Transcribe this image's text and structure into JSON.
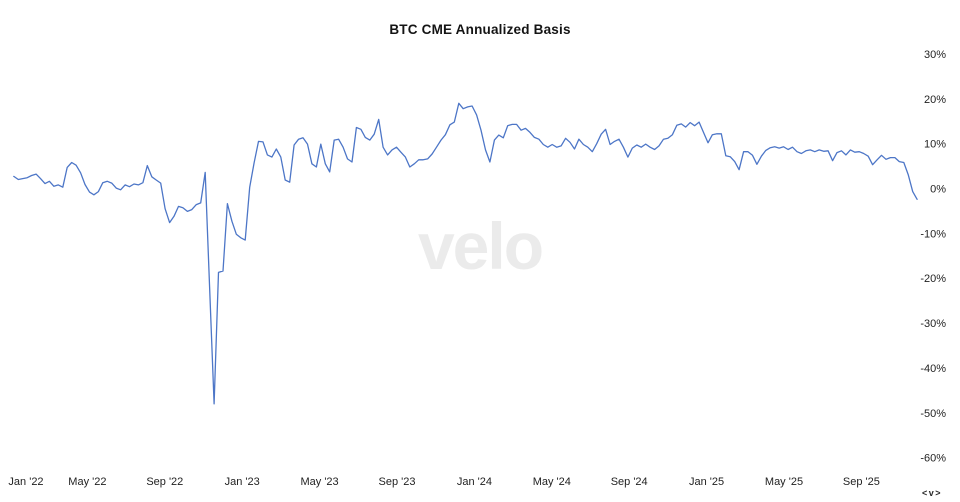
{
  "title": "BTC CME Annualized Basis",
  "watermark": "velo",
  "corner_mark": "<v>",
  "colors": {
    "line": "#4d76c7",
    "title_text": "#141414",
    "tick_text": "#1f1f1f",
    "watermark_text": "#ebebeb",
    "background": "#ffffff"
  },
  "chart_data": {
    "type": "line",
    "title": "BTC CME Annualized Basis",
    "series_name": "BTC CME Annualized Basis",
    "unit": "%",
    "grid": false,
    "legend": false,
    "x_start_date": "2022-01-07",
    "x_interval_days": 7,
    "ylim": [
      -62,
      32
    ],
    "y_ticks": [
      30,
      20,
      10,
      0,
      -10,
      -20,
      -30,
      -40,
      -50,
      -60
    ],
    "x_tick_labels": [
      {
        "label": "Jan '22",
        "month": 0
      },
      {
        "label": "May '22",
        "month": 4
      },
      {
        "label": "Sep '22",
        "month": 8
      },
      {
        "label": "Jan '23",
        "month": 12
      },
      {
        "label": "May '23",
        "month": 16
      },
      {
        "label": "Sep '23",
        "month": 20
      },
      {
        "label": "Jan '24",
        "month": 24
      },
      {
        "label": "May '24",
        "month": 28
      },
      {
        "label": "Sep '24",
        "month": 32
      },
      {
        "label": "Jan '25",
        "month": 36
      },
      {
        "label": "May '25",
        "month": 40
      },
      {
        "label": "Sep '25",
        "month": 44
      }
    ],
    "values": [
      2.7,
      2.0,
      2.2,
      2.4,
      2.9,
      3.2,
      2.2,
      1.1,
      1.6,
      0.5,
      0.8,
      0.3,
      4.7,
      5.8,
      5.2,
      3.5,
      0.9,
      -0.8,
      -1.4,
      -0.7,
      1.3,
      1.6,
      1.2,
      0.1,
      -0.3,
      0.8,
      0.4,
      1.0,
      0.8,
      1.3,
      5.1,
      2.6,
      1.9,
      1.2,
      -4.5,
      -7.6,
      -6.2,
      -4.0,
      -4.3,
      -5.1,
      -4.7,
      -3.6,
      -3.2,
      3.6,
      -22.0,
      -48.0,
      -18.7,
      -18.4,
      -3.4,
      -7.3,
      -10.2,
      -11.0,
      -11.5,
      0.3,
      5.7,
      10.5,
      10.4,
      7.5,
      7.0,
      8.8,
      7.0,
      1.9,
      1.4,
      9.7,
      11.0,
      11.3,
      9.9,
      5.5,
      4.8,
      9.9,
      5.5,
      3.7,
      10.8,
      11.0,
      9.2,
      6.6,
      5.9,
      13.6,
      13.2,
      11.4,
      10.8,
      12.1,
      15.4,
      9.2,
      7.5,
      8.6,
      9.2,
      8.1,
      7.0,
      4.8,
      5.5,
      6.4,
      6.4,
      6.6,
      7.7,
      9.2,
      10.8,
      12.0,
      14.2,
      14.8,
      19.0,
      17.8,
      18.2,
      18.4,
      16.4,
      13.0,
      8.6,
      5.9,
      10.8,
      11.9,
      11.3,
      14.0,
      14.3,
      14.3,
      13.0,
      13.4,
      12.5,
      11.4,
      11.0,
      9.8,
      9.2,
      9.8,
      9.2,
      9.5,
      11.2,
      10.3,
      8.8,
      11.0,
      9.8,
      9.2,
      8.2,
      10.0,
      12.1,
      13.2,
      9.8,
      10.5,
      11.0,
      9.2,
      7.0,
      9.0,
      9.7,
      9.2,
      9.9,
      9.2,
      8.7,
      9.5,
      11.0,
      11.2,
      12.0,
      14.1,
      14.4,
      13.7,
      14.7,
      14.0,
      14.8,
      12.5,
      10.2,
      12.0,
      12.2,
      12.2,
      7.3,
      7.1,
      6.0,
      4.2,
      8.2,
      8.2,
      7.4,
      5.4,
      7.2,
      8.5,
      9.1,
      9.3,
      9.0,
      9.3,
      8.7,
      9.2,
      8.2,
      7.8,
      8.4,
      8.6,
      8.2,
      8.6,
      8.3,
      8.4,
      6.2,
      8.0,
      8.4,
      7.5,
      8.6,
      8.1,
      8.2,
      7.8,
      7.2,
      5.3,
      6.4,
      7.4,
      6.5,
      6.9,
      6.9,
      6.0,
      5.8,
      3.1,
      -0.7,
      -2.4
    ]
  }
}
